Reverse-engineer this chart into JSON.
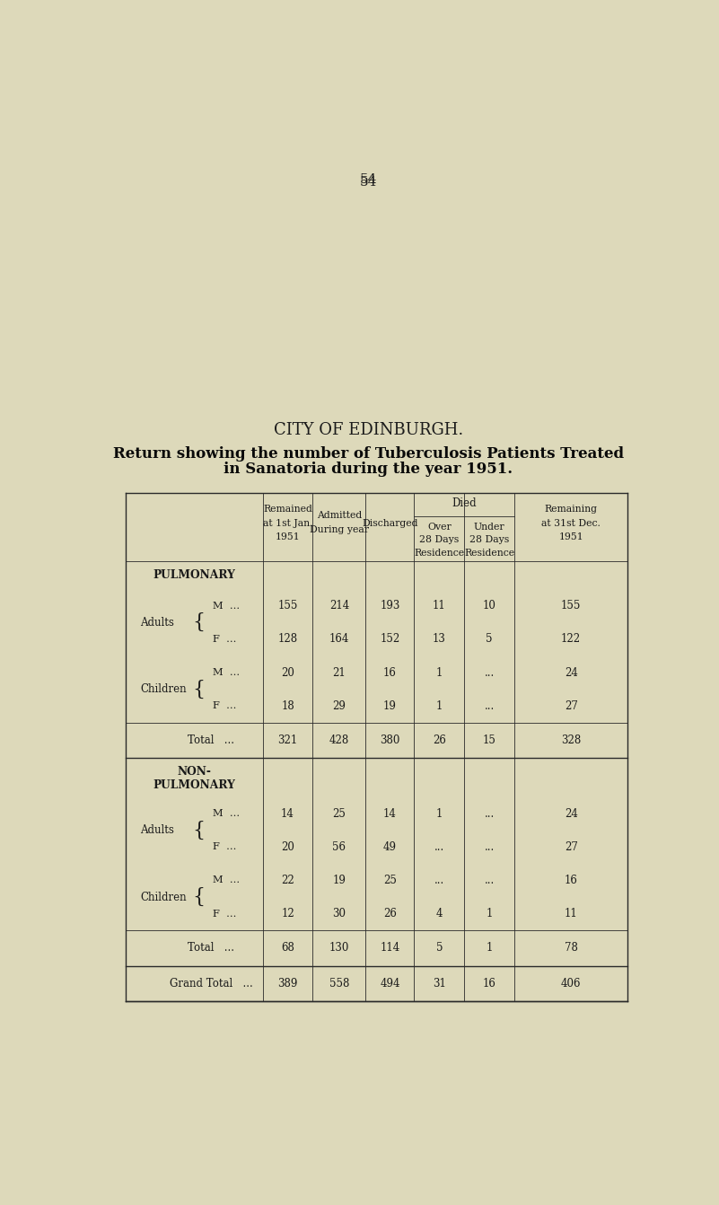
{
  "page_number": "54",
  "bg_color": "#ddd9ba",
  "title1": "CITY OF EDINBURGH.",
  "title2": "Return showing the number of Tuberculosis Patients Treated",
  "title3": "in Sanatoria during the year 1951.",
  "died_header": "Died",
  "col_headers_line1": [
    "Remained\nat 1st Jan.\n1951",
    "Admitted\nDuring year",
    "Discharged",
    "Over\n28 Days\nResidence",
    "Under\n28 Days\nResidence",
    "Remaining\nat 31st Dec.\n1951"
  ],
  "sections": [
    {
      "section_label": "PULMONARY",
      "two_line": false,
      "rows": [
        {
          "group": "Adults",
          "gender": "M",
          "remained": "155",
          "admitted": "214",
          "discharged": "193",
          "died_over": "11",
          "died_under": "10",
          "remaining": "155"
        },
        {
          "group": "Adults",
          "gender": "F",
          "remained": "128",
          "admitted": "164",
          "discharged": "152",
          "died_over": "13",
          "died_under": "5",
          "remaining": "122"
        },
        {
          "group": "Children",
          "gender": "M",
          "remained": "20",
          "admitted": "21",
          "discharged": "16",
          "died_over": "1",
          "died_under": "...",
          "remaining": "24"
        },
        {
          "group": "Children",
          "gender": "F",
          "remained": "18",
          "admitted": "29",
          "discharged": "19",
          "died_over": "1",
          "died_under": "...",
          "remaining": "27"
        }
      ],
      "total": {
        "remained": "321",
        "admitted": "428",
        "discharged": "380",
        "died_over": "26",
        "died_under": "15",
        "remaining": "328"
      }
    },
    {
      "section_label": "NON-\nPULMONARY",
      "two_line": true,
      "rows": [
        {
          "group": "Adults",
          "gender": "M",
          "remained": "14",
          "admitted": "25",
          "discharged": "14",
          "died_over": "1",
          "died_under": "...",
          "remaining": "24"
        },
        {
          "group": "Adults",
          "gender": "F",
          "remained": "20",
          "admitted": "56",
          "discharged": "49",
          "died_over": "...",
          "died_under": "...",
          "remaining": "27"
        },
        {
          "group": "Children",
          "gender": "M",
          "remained": "22",
          "admitted": "19",
          "discharged": "25",
          "died_over": "...",
          "died_under": "...",
          "remaining": "16"
        },
        {
          "group": "Children",
          "gender": "F",
          "remained": "12",
          "admitted": "30",
          "discharged": "26",
          "died_over": "4",
          "died_under": "1",
          "remaining": "11"
        }
      ],
      "total": {
        "remained": "68",
        "admitted": "130",
        "discharged": "114",
        "died_over": "5",
        "died_under": "1",
        "remaining": "78"
      }
    }
  ],
  "grand_total": {
    "remained": "389",
    "admitted": "558",
    "discharged": "494",
    "died_over": "31",
    "died_under": "16",
    "remaining": "406"
  }
}
